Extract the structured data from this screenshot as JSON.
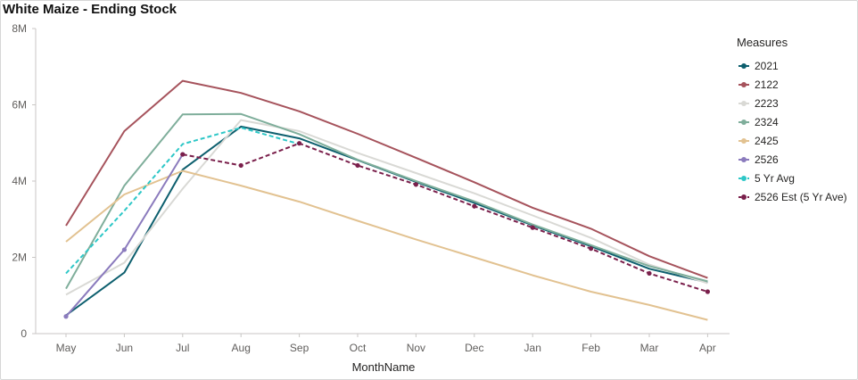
{
  "chart_data": {
    "type": "line",
    "title": "White Maize - Ending Stock",
    "xlabel": "MonthName",
    "ylabel": "",
    "categories": [
      "May",
      "Jun",
      "Jul",
      "Aug",
      "Sep",
      "Oct",
      "Nov",
      "Dec",
      "Jan",
      "Feb",
      "Mar",
      "Apr"
    ],
    "ylim": [
      0,
      8000000
    ],
    "yticks": [
      0,
      2000000,
      4000000,
      6000000,
      8000000
    ],
    "ytick_labels": [
      "0",
      "2M",
      "4M",
      "6M",
      "8M"
    ],
    "grid": false,
    "legend_title": "Measures",
    "legend_position": "right",
    "series": [
      {
        "name": "2021",
        "color": "#0d5f6e",
        "dash": false,
        "markers": false,
        "values": [
          480000,
          1600000,
          4300000,
          5430000,
          5120000,
          4550000,
          3980000,
          3430000,
          2840000,
          2290000,
          1700000,
          1340000
        ]
      },
      {
        "name": "2122",
        "color": "#a6535c",
        "dash": false,
        "markers": false,
        "values": [
          2830000,
          5310000,
          6630000,
          6310000,
          5830000,
          5240000,
          4610000,
          3970000,
          3300000,
          2750000,
          2030000,
          1460000
        ]
      },
      {
        "name": "2223",
        "color": "#d9d9d5",
        "dash": false,
        "markers": false,
        "values": [
          1020000,
          1860000,
          3800000,
          5600000,
          5310000,
          4740000,
          4210000,
          3680000,
          3100000,
          2510000,
          1810000,
          1320000
        ]
      },
      {
        "name": "2324",
        "color": "#7fae9b",
        "dash": false,
        "markers": false,
        "values": [
          1180000,
          3880000,
          5750000,
          5760000,
          5230000,
          4560000,
          4000000,
          3470000,
          2860000,
          2320000,
          1770000,
          1370000
        ]
      },
      {
        "name": "2425",
        "color": "#e2c291",
        "dash": false,
        "markers": false,
        "values": [
          2410000,
          3650000,
          4270000,
          3880000,
          3460000,
          2960000,
          2470000,
          2000000,
          1530000,
          1100000,
          750000,
          360000
        ]
      },
      {
        "name": "2526",
        "color": "#8b7bbd",
        "dash": false,
        "markers": true,
        "values": [
          450000,
          2200000,
          4700000,
          null,
          null,
          null,
          null,
          null,
          null,
          null,
          null,
          null
        ]
      },
      {
        "name": "5 Yr Avg",
        "color": "#2dc7c7",
        "dash": true,
        "markers": false,
        "values": [
          1580000,
          3220000,
          4970000,
          5400000,
          4970000,
          null,
          null,
          null,
          null,
          null,
          null,
          null
        ]
      },
      {
        "name": "2526 Est (5 Yr Ave)",
        "color": "#7a1f4b",
        "dash": true,
        "markers": true,
        "values": [
          null,
          null,
          4700000,
          4410000,
          4990000,
          4410000,
          3910000,
          3340000,
          2780000,
          2230000,
          1580000,
          1100000
        ]
      }
    ]
  }
}
